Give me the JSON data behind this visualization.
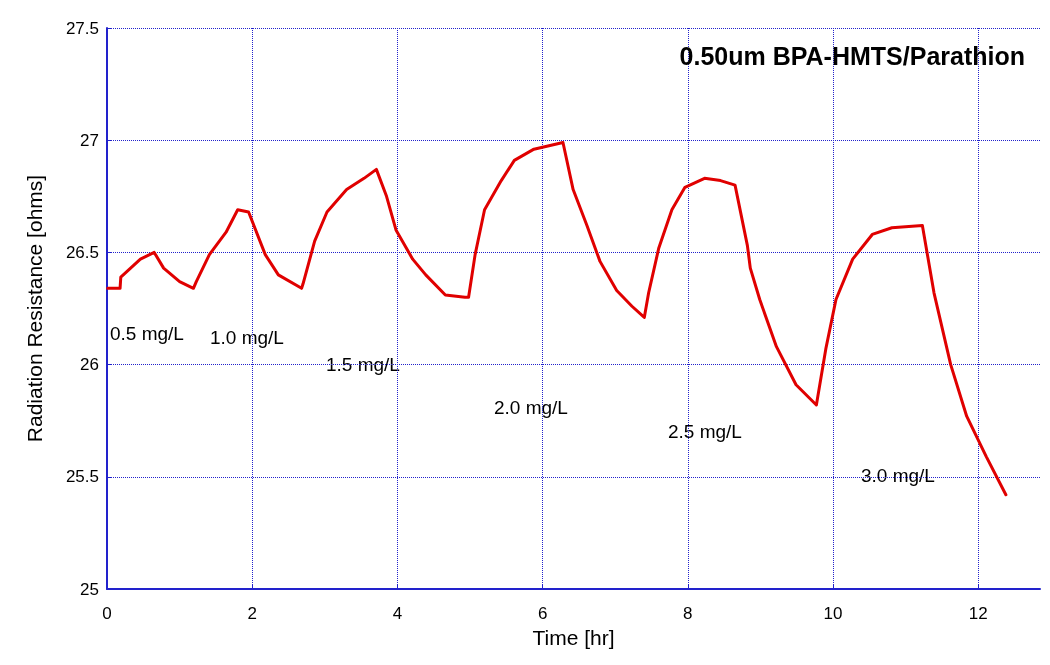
{
  "chart_data": {
    "type": "line",
    "title": "0.50um BPA-HMTS/Parathion",
    "xlabel": "Time [hr]",
    "ylabel": "Radiation Resistance [ohms]",
    "xlim": [
      0,
      12.85
    ],
    "xticks": [
      0,
      2,
      4,
      6,
      8,
      10,
      12
    ],
    "ylim": [
      25,
      27.5
    ],
    "yticks": [
      25,
      25.5,
      26,
      26.5,
      27,
      27.5
    ],
    "grid": true,
    "marker": "none",
    "line_style": "solid",
    "series": [
      {
        "color": "#e00000",
        "x": [
          0.01,
          0.18,
          0.19,
          0.46,
          0.65,
          0.78,
          1.0,
          1.19,
          1.23,
          1.41,
          1.64,
          1.8,
          1.95,
          2.18,
          2.36,
          2.68,
          2.7,
          2.86,
          3.03,
          3.3,
          3.54,
          3.71,
          3.85,
          3.98,
          4.21,
          4.39,
          4.66,
          4.93,
          4.98,
          5.07,
          5.2,
          5.43,
          5.61,
          5.88,
          6.28,
          6.42,
          6.61,
          6.79,
          7.02,
          7.23,
          7.4,
          7.46,
          7.6,
          7.78,
          7.96,
          8.23,
          8.45,
          8.65,
          8.82,
          8.86,
          8.99,
          9.22,
          9.49,
          9.77,
          9.9,
          10.04,
          10.27,
          10.54,
          10.81,
          11.23,
          11.39,
          11.62,
          11.84,
          12.11,
          12.38
        ],
        "values": [
          26.34,
          26.34,
          26.39,
          26.47,
          26.5,
          26.43,
          26.37,
          26.34,
          26.37,
          26.49,
          26.59,
          26.69,
          26.68,
          26.49,
          26.4,
          26.34,
          26.36,
          26.55,
          26.68,
          26.78,
          26.83,
          26.87,
          26.75,
          26.6,
          26.47,
          26.4,
          26.31,
          26.3,
          26.3,
          26.49,
          26.69,
          26.82,
          26.91,
          26.96,
          26.99,
          26.78,
          26.62,
          26.46,
          26.33,
          26.26,
          26.21,
          26.32,
          26.52,
          26.69,
          26.79,
          26.83,
          26.82,
          26.8,
          26.53,
          26.43,
          26.29,
          26.08,
          25.91,
          25.82,
          26.07,
          26.29,
          26.47,
          26.58,
          26.61,
          26.62,
          26.32,
          26.0,
          25.77,
          25.59,
          25.42
        ]
      }
    ],
    "annotations": [
      "0.5 mg/L",
      "1.0 mg/L",
      "1.5 mg/L",
      "2.0 mg/L",
      "2.5 mg/L",
      "3.0 mg/L"
    ]
  }
}
